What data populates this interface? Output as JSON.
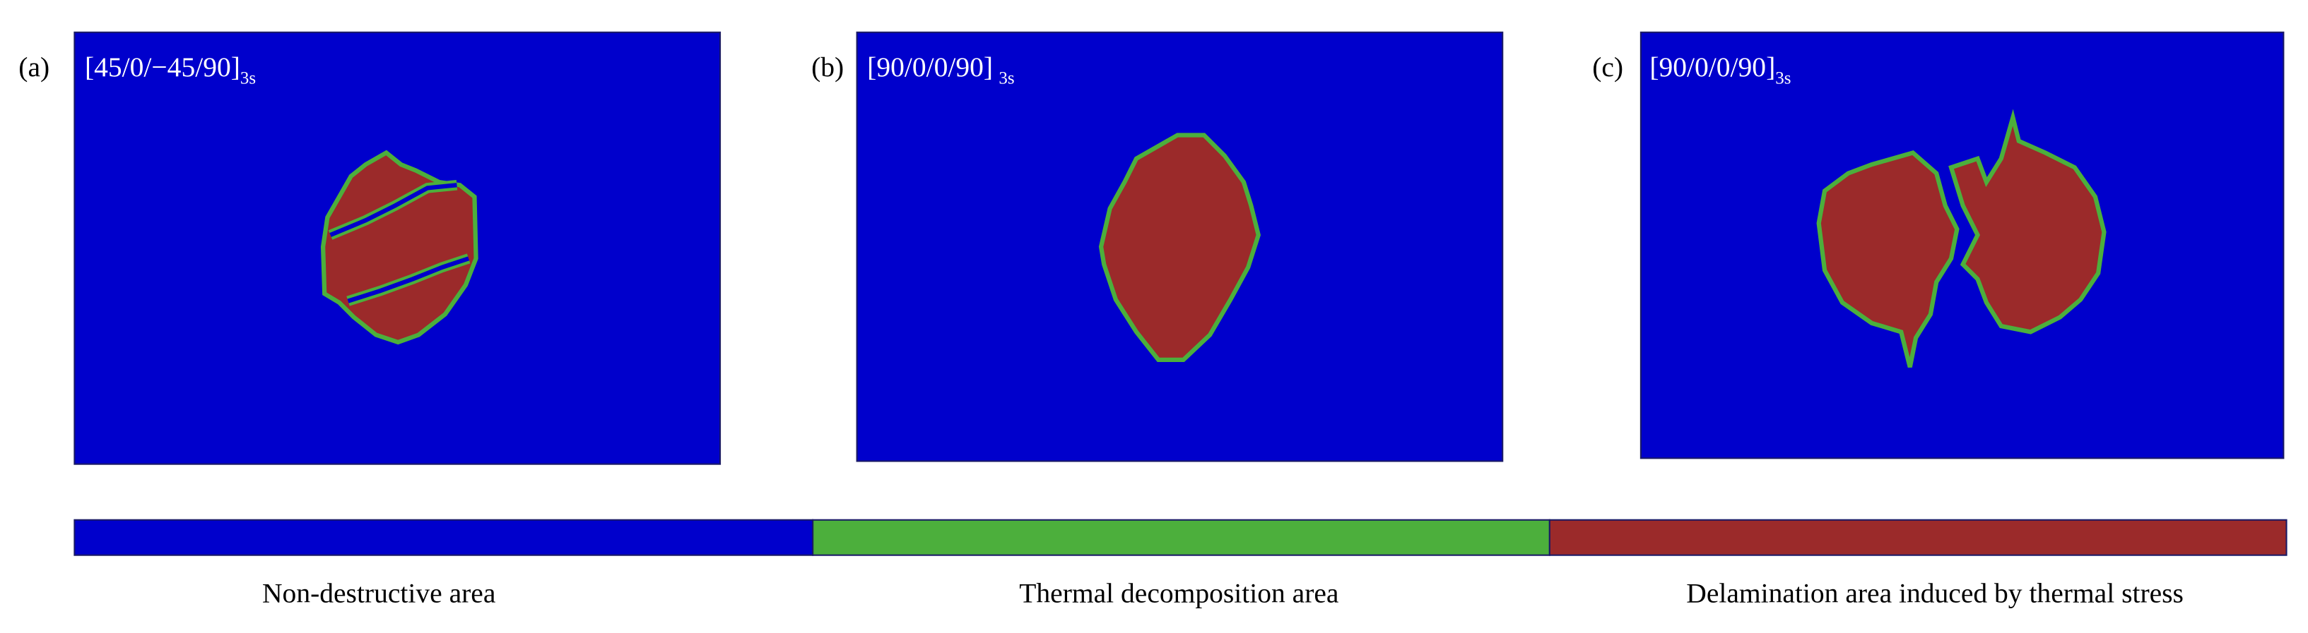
{
  "panels": [
    {
      "label": "(a)",
      "layup": "[45/0/−45/90]",
      "subscript": "3s"
    },
    {
      "label": "(b)",
      "layup": "[90/0/0/90]",
      "subscript": "3s"
    },
    {
      "label": "(c)",
      "layup": "[90/0/0/90]",
      "subscript": "3s"
    }
  ],
  "legend": [
    {
      "label": "Non-destructive area",
      "color": "#0000cc"
    },
    {
      "label": "Thermal decomposition area",
      "color": "#4caf3c"
    },
    {
      "label": "Delamination area induced by thermal stress",
      "color": "#9b2a2a"
    }
  ]
}
